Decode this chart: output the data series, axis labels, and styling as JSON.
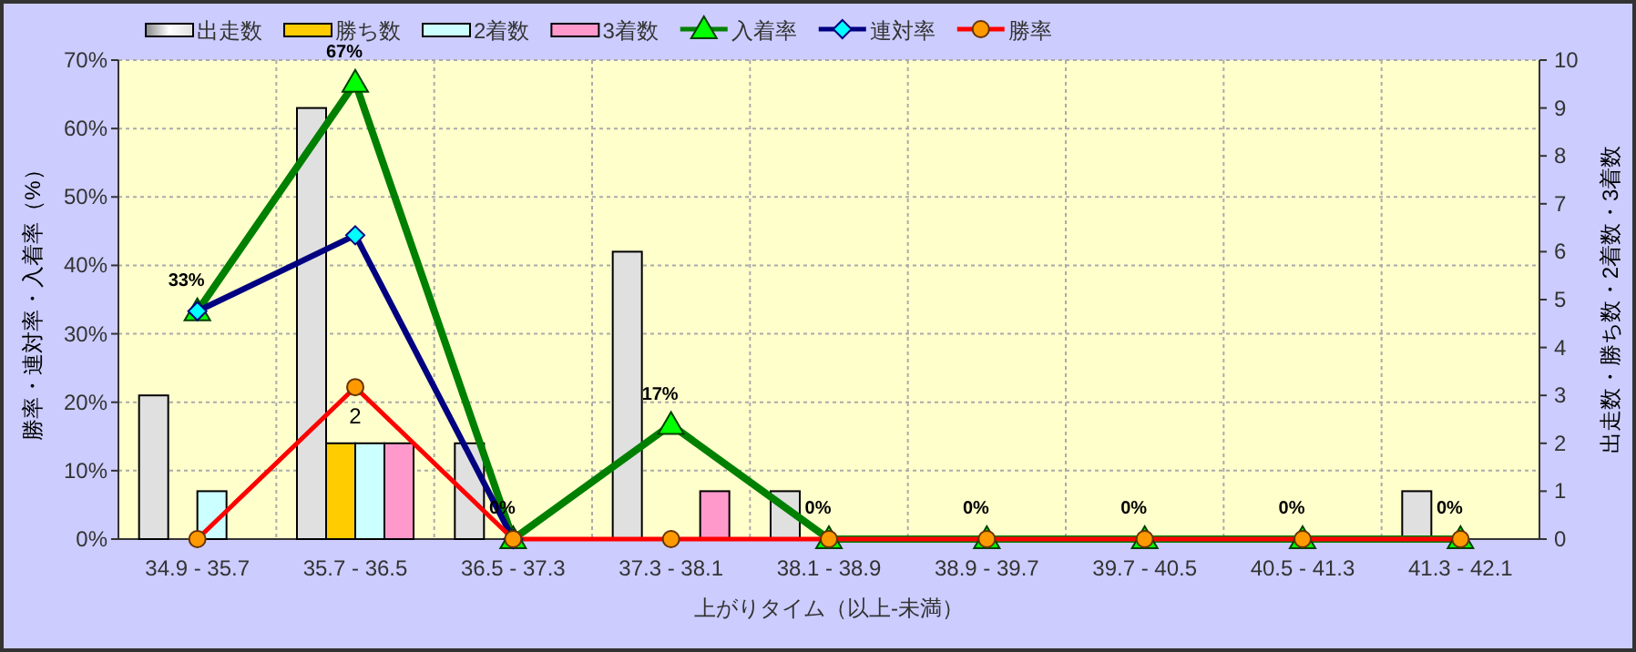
{
  "chart_data": {
    "type": "bar",
    "xlabel": "上がりタイム（以上-未満）",
    "ylabel": "勝率・連対率・入着率（%）",
    "y2label": "出走数・勝ち数・2着数・3着数",
    "categories": [
      "34.9 - 35.7",
      "35.7 - 36.5",
      "36.5 - 37.3",
      "37.3 - 38.1",
      "38.1 - 38.9",
      "38.9 - 39.7",
      "39.7 - 40.5",
      "40.5 - 41.3",
      "41.3 - 42.1"
    ],
    "series": [
      {
        "name": "出走数",
        "axis": "y2",
        "color": "#e0e0e0",
        "values": [
          3,
          9,
          2,
          6,
          1,
          0,
          0,
          0,
          1
        ]
      },
      {
        "name": "勝ち数",
        "axis": "y2",
        "color": "#ffcc00",
        "values": [
          0,
          2,
          0,
          0,
          0,
          0,
          0,
          0,
          0
        ]
      },
      {
        "name": "2着数",
        "axis": "y2",
        "color": "#ccffff",
        "values": [
          1,
          2,
          0,
          0,
          0,
          0,
          0,
          0,
          0
        ]
      },
      {
        "name": "3着数",
        "axis": "y2",
        "color": "#ff99cc",
        "values": [
          0,
          2,
          0,
          1,
          0,
          0,
          0,
          0,
          0
        ]
      },
      {
        "name": "入着率",
        "type": "line",
        "marker": "triangle",
        "color": "#008000",
        "values": [
          33.3,
          66.7,
          0,
          16.7,
          0,
          0,
          0,
          0,
          0
        ],
        "value_labels": [
          "33%",
          "67%",
          "0%",
          "17%",
          "0%",
          "0%",
          "0%",
          "0%",
          "0%"
        ]
      },
      {
        "name": "連対率",
        "type": "line",
        "marker": "diamond",
        "color": "#000080",
        "values": [
          33.3,
          44.4,
          0,
          null,
          null,
          null,
          null,
          null,
          null
        ]
      },
      {
        "name": "勝率",
        "type": "line",
        "marker": "circle",
        "color": "#ff0000",
        "values": [
          0,
          22.2,
          0,
          0,
          0,
          0,
          0,
          0,
          0
        ]
      }
    ],
    "annotations": [
      {
        "text": "2",
        "x": "35.7 - 36.5",
        "y": 22.2
      }
    ],
    "ylim": [
      0,
      70
    ],
    "yticks": [
      {
        "value": 0,
        "label": "0%"
      },
      {
        "value": 10,
        "label": "10%"
      },
      {
        "value": 20,
        "label": "20%"
      },
      {
        "value": 30,
        "label": "30%"
      },
      {
        "value": 40,
        "label": "40%"
      },
      {
        "value": 50,
        "label": "50%"
      },
      {
        "value": 60,
        "label": "60%"
      },
      {
        "value": 70,
        "label": "70%"
      }
    ],
    "y2lim": [
      0,
      10
    ],
    "y2ticks": [
      0,
      1,
      2,
      3,
      4,
      5,
      6,
      7,
      8,
      9,
      10
    ],
    "grid": true,
    "legend": "top"
  }
}
